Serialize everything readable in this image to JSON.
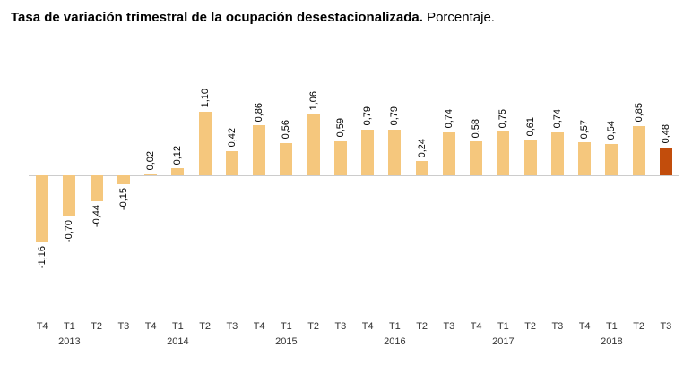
{
  "title": {
    "bold": "Tasa de variación trimestral de la ocupación desestacionalizada.",
    "regular": "Porcentaje."
  },
  "colors": {
    "bar": "#F5C77D",
    "bar_highlight": "#C24D0C",
    "zero_line": "#CCCCCC"
  },
  "chart_data": {
    "type": "bar",
    "title": "Tasa de variación trimestral de la ocupación desestacionalizada. Porcentaje.",
    "x": [
      "T4",
      "T1",
      "T2",
      "T3",
      "T4",
      "T1",
      "T2",
      "T3",
      "T4",
      "T1",
      "T2",
      "T3",
      "T4",
      "T1",
      "T2",
      "T3",
      "T4",
      "T1",
      "T2",
      "T3",
      "T4",
      "T1",
      "T2",
      "T3"
    ],
    "years": {
      "1": "2013",
      "5": "2014",
      "9": "2015",
      "13": "2016",
      "17": "2017",
      "21": "2018"
    },
    "values": [
      -1.16,
      -0.7,
      -0.44,
      -0.15,
      0.02,
      0.12,
      1.1,
      0.42,
      0.86,
      0.56,
      1.06,
      0.59,
      0.79,
      0.79,
      0.24,
      0.74,
      0.58,
      0.75,
      0.61,
      0.74,
      0.57,
      0.54,
      0.85,
      0.48
    ],
    "labels": [
      "-1,16",
      "-0,70",
      "-0,44",
      "-0,15",
      "0,02",
      "0,12",
      "1,10",
      "0,42",
      "0,86",
      "0,56",
      "1,06",
      "0,59",
      "0,79",
      "0,79",
      "0,24",
      "0,74",
      "0,58",
      "0,75",
      "0,61",
      "0,74",
      "0,57",
      "0,54",
      "0,85",
      "0,48"
    ],
    "highlight_index": 23,
    "xlabel": "",
    "ylabel": "",
    "ylim": [
      -1.3,
      1.3
    ],
    "grid": false,
    "legend": "none"
  }
}
